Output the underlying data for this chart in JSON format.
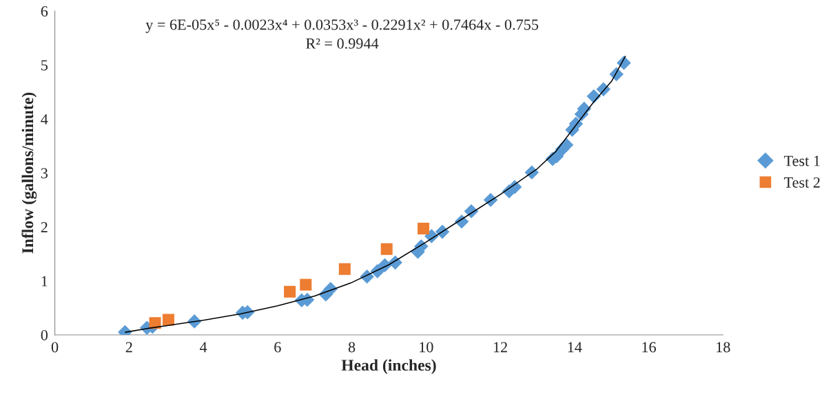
{
  "chart_data": {
    "type": "scatter",
    "xlabel": "Head (inches)",
    "ylabel": "Inflow (gallons/minute)",
    "annotations": [
      "y = 6E-05x⁵ - 0.0023x⁴ + 0.0353x³ - 0.2291x² + 0.7464x - 0.755",
      "R² = 0.9944"
    ],
    "xlim": [
      0,
      18
    ],
    "xticks": [
      0,
      2,
      4,
      6,
      8,
      10,
      12,
      14,
      16,
      18
    ],
    "ylim": [
      0,
      6
    ],
    "yticks": [
      0,
      1,
      2,
      3,
      4,
      5,
      6
    ],
    "grid": false,
    "legend": "right",
    "series": [
      {
        "name": "Test 1",
        "marker": "diamond",
        "color": "#5b9bd5",
        "x": [
          1.89,
          2.48,
          2.63,
          3.76,
          5.06,
          5.19,
          6.65,
          6.8,
          7.3,
          7.43,
          8.41,
          8.69,
          8.89,
          9.17,
          9.78,
          9.87,
          10.15,
          10.44,
          10.96,
          11.22,
          11.74,
          12.24,
          12.39,
          12.85,
          13.41,
          13.52,
          13.67,
          13.78,
          13.94,
          14.04,
          14.19,
          14.26,
          14.52,
          14.78,
          15.13,
          15.33
        ],
        "values": [
          0.05,
          0.13,
          0.15,
          0.25,
          0.41,
          0.42,
          0.64,
          0.65,
          0.75,
          0.85,
          1.08,
          1.18,
          1.29,
          1.34,
          1.54,
          1.64,
          1.83,
          1.91,
          2.1,
          2.29,
          2.5,
          2.66,
          2.74,
          3.01,
          3.26,
          3.31,
          3.44,
          3.52,
          3.8,
          3.91,
          4.09,
          4.19,
          4.42,
          4.55,
          4.83,
          5.04
        ]
      },
      {
        "name": "Test 2",
        "marker": "square",
        "color": "#ed7d31",
        "x": [
          2.7,
          3.06,
          6.33,
          6.76,
          7.81,
          8.94,
          9.93
        ],
        "values": [
          0.22,
          0.28,
          0.8,
          0.93,
          1.22,
          1.59,
          1.97
        ]
      },
      {
        "type": "line",
        "marker": "none",
        "line_style": "solid",
        "color": "#000000",
        "x": [
          1.9,
          2.5,
          3,
          4,
          5,
          6,
          7,
          8,
          9,
          10,
          11,
          12,
          13,
          13.5,
          14,
          14.5,
          15,
          15.37
        ],
        "values": [
          0.05,
          0.12,
          0.17,
          0.27,
          0.39,
          0.54,
          0.72,
          0.97,
          1.3,
          1.72,
          2.16,
          2.6,
          3.08,
          3.4,
          3.85,
          4.3,
          4.7,
          5.16
        ]
      }
    ]
  }
}
